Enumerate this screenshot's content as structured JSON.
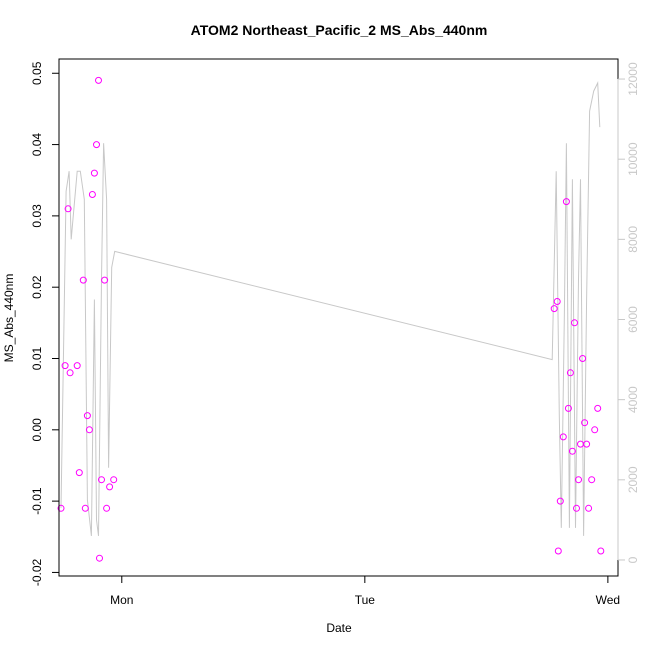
{
  "chart_data": {
    "type": "scatter",
    "title": "ATOM2 Northeast_Pacific_2 MS_Abs_440nm",
    "xlabel": "Date",
    "ylabel": "MS_Abs_440nm",
    "x_ticks": [
      {
        "label": "Mon",
        "value": 24
      },
      {
        "label": "Tue",
        "value": 48
      },
      {
        "label": "Wed",
        "value": 72
      }
    ],
    "xlim": [
      17.8,
      73.0
    ],
    "ylim": [
      -0.0205,
      0.052
    ],
    "y_ticks": [
      -0.02,
      -0.01,
      0.0,
      0.01,
      0.02,
      0.03,
      0.04,
      0.05
    ],
    "y_tick_labels": [
      "-0.02",
      "-0.01",
      "0.00",
      "0.01",
      "0.02",
      "0.03",
      "0.04",
      "0.05"
    ],
    "y2_lim": [
      -400,
      12500
    ],
    "y2_ticks": [
      0,
      2000,
      4000,
      6000,
      8000,
      10000,
      12000
    ],
    "y2_tick_labels": [
      "0",
      "2000",
      "4000",
      "6000",
      "8000",
      "10000",
      "12000"
    ],
    "grid": false,
    "series": [
      {
        "kind": "points",
        "color": "#ff00ff",
        "axis": "left",
        "points": [
          [
            18.0,
            -0.011
          ],
          [
            18.4,
            0.009
          ],
          [
            18.7,
            0.031
          ],
          [
            18.9,
            0.008
          ],
          [
            19.6,
            0.009
          ],
          [
            19.8,
            -0.006
          ],
          [
            20.2,
            0.021
          ],
          [
            20.4,
            -0.011
          ],
          [
            20.6,
            0.002
          ],
          [
            20.8,
            0.0
          ],
          [
            21.1,
            0.033
          ],
          [
            21.3,
            0.036
          ],
          [
            21.5,
            0.04
          ],
          [
            21.7,
            0.049
          ],
          [
            21.8,
            -0.018
          ],
          [
            22.0,
            -0.007
          ],
          [
            22.3,
            0.021
          ],
          [
            22.5,
            -0.011
          ],
          [
            22.8,
            -0.008
          ],
          [
            23.2,
            -0.007
          ],
          [
            66.7,
            0.017
          ],
          [
            67.0,
            0.018
          ],
          [
            67.1,
            -0.017
          ],
          [
            67.3,
            -0.01
          ],
          [
            67.6,
            -0.001
          ],
          [
            67.9,
            0.032
          ],
          [
            68.1,
            0.003
          ],
          [
            68.3,
            0.008
          ],
          [
            68.5,
            -0.003
          ],
          [
            68.7,
            0.015
          ],
          [
            68.9,
            -0.011
          ],
          [
            69.1,
            -0.007
          ],
          [
            69.3,
            -0.002
          ],
          [
            69.5,
            0.01
          ],
          [
            69.7,
            0.001
          ],
          [
            69.9,
            -0.002
          ],
          [
            70.1,
            -0.011
          ],
          [
            70.4,
            -0.007
          ],
          [
            70.7,
            0.0
          ],
          [
            71.0,
            0.003
          ],
          [
            71.3,
            -0.017
          ]
        ]
      },
      {
        "kind": "line",
        "color": "#c8c8c8",
        "axis": "right",
        "points": [
          [
            18.0,
            1300
          ],
          [
            18.5,
            9200
          ],
          [
            18.8,
            9700
          ],
          [
            19.0,
            8000
          ],
          [
            19.6,
            9700
          ],
          [
            19.9,
            9700
          ],
          [
            20.3,
            9000
          ],
          [
            20.6,
            1500
          ],
          [
            21.0,
            600
          ],
          [
            21.3,
            6500
          ],
          [
            21.5,
            1000
          ],
          [
            21.7,
            600
          ],
          [
            22.0,
            7000
          ],
          [
            22.2,
            10400
          ],
          [
            22.5,
            9000
          ],
          [
            22.7,
            2300
          ],
          [
            23.0,
            7300
          ],
          [
            23.3,
            7700
          ],
          [
            66.5,
            5000
          ],
          [
            66.9,
            9700
          ],
          [
            67.2,
            3600
          ],
          [
            67.4,
            800
          ],
          [
            67.7,
            6000
          ],
          [
            67.9,
            10400
          ],
          [
            68.2,
            800
          ],
          [
            68.5,
            9500
          ],
          [
            68.8,
            800
          ],
          [
            69.1,
            7000
          ],
          [
            69.3,
            9500
          ],
          [
            69.6,
            600
          ],
          [
            69.9,
            6500
          ],
          [
            70.2,
            11200
          ],
          [
            70.6,
            11700
          ],
          [
            71.0,
            11900
          ],
          [
            71.2,
            10800
          ]
        ]
      }
    ]
  }
}
